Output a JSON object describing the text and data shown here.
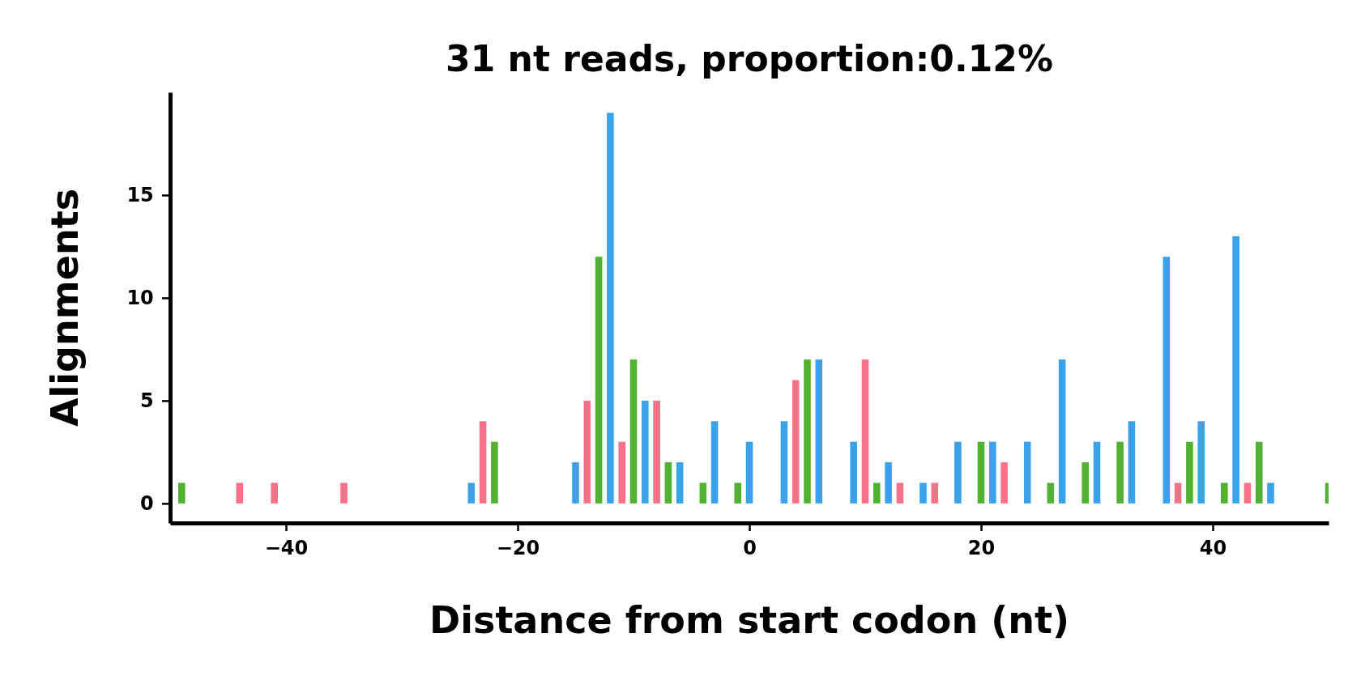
{
  "chart_data": {
    "type": "bar",
    "title": "31 nt reads, proportion:0.12%",
    "xlabel": "Distance from start codon (nt)",
    "ylabel": "Alignments",
    "x": [
      -49,
      -44,
      -41,
      -35,
      -24,
      -23,
      -22,
      -15,
      -14,
      -13,
      -12,
      -11,
      -10,
      -9,
      -8,
      -7,
      -6,
      -4,
      -3,
      -1,
      0,
      3,
      4,
      5,
      6,
      9,
      10,
      11,
      12,
      13,
      15,
      16,
      18,
      20,
      21,
      22,
      24,
      26,
      27,
      29,
      30,
      32,
      33,
      36,
      37,
      38,
      39,
      41,
      42,
      43,
      44,
      45,
      50
    ],
    "values": [
      1,
      1,
      1,
      1,
      1,
      4,
      3,
      2,
      5,
      12,
      19,
      3,
      7,
      5,
      5,
      2,
      2,
      1,
      4,
      1,
      3,
      4,
      6,
      7,
      7,
      3,
      7,
      1,
      2,
      1,
      1,
      1,
      3,
      3,
      3,
      2,
      3,
      1,
      7,
      2,
      3,
      3,
      4,
      12,
      1,
      3,
      4,
      1,
      13,
      1,
      3,
      1,
      1
    ],
    "colors": [
      "#52b032",
      "#f57289",
      "#f57289",
      "#f57289",
      "#3ba2e9",
      "#f57289",
      "#52b032",
      "#3ba2e9",
      "#f57289",
      "#52b032",
      "#3ba2e9",
      "#f57289",
      "#52b032",
      "#3ba2e9",
      "#f57289",
      "#52b032",
      "#3ba2e9",
      "#52b032",
      "#3ba2e9",
      "#52b032",
      "#3ba2e9",
      "#3ba2e9",
      "#f57289",
      "#52b032",
      "#3ba2e9",
      "#3ba2e9",
      "#f57289",
      "#52b032",
      "#3ba2e9",
      "#f57289",
      "#3ba2e9",
      "#f57289",
      "#3ba2e9",
      "#52b032",
      "#3ba2e9",
      "#f57289",
      "#3ba2e9",
      "#52b032",
      "#3ba2e9",
      "#52b032",
      "#3ba2e9",
      "#52b032",
      "#3ba2e9",
      "#3ba2e9",
      "#f57289",
      "#52b032",
      "#3ba2e9",
      "#52b032",
      "#3ba2e9",
      "#f57289",
      "#52b032",
      "#3ba2e9",
      "#52b032"
    ],
    "xlim": [
      -50,
      50
    ],
    "ylim": [
      -0.95,
      20
    ],
    "xticks": [
      {
        "value": -40,
        "label": "−40"
      },
      {
        "value": -20,
        "label": "−20"
      },
      0,
      20,
      40
    ],
    "yticks": [
      0,
      5,
      10,
      15
    ],
    "grid": false
  }
}
